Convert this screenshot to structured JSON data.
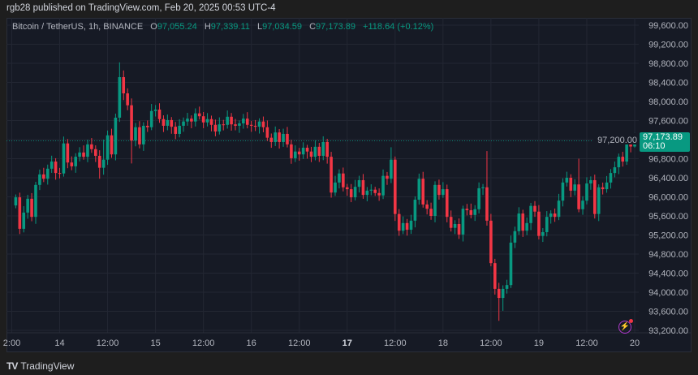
{
  "publisher": "rgb28 published on TradingView.com, Feb 20, 2025 00:53 UTC-4",
  "legend": {
    "symbol": "Bitcoin / TetherUS, 1h, BINANCE",
    "o_label": "O",
    "o": "97,055.24",
    "h_label": "H",
    "h": "97,339.11",
    "l_label": "L",
    "l": "97,034.59",
    "c_label": "C",
    "c": "97,173.89",
    "change": "+118.64 (+0.12%)"
  },
  "price_tag": {
    "price": "97,173.89",
    "countdown": "06:10"
  },
  "footer": {
    "logo": "TV",
    "brand": "TradingView"
  },
  "colors": {
    "up": "#089981",
    "down": "#f23645",
    "background": "#161a25",
    "grid": "#232733",
    "axis_text": "#b2b5be",
    "alert": "#b33ad0"
  },
  "icons": {
    "alert": "lightning-alert-icon",
    "logo": "tradingview-logo-icon"
  },
  "chart_data": {
    "type": "candlestick",
    "title": "Bitcoin / TetherUS, 1h, BINANCE",
    "ylim": [
      93200,
      99600
    ],
    "grid": true,
    "y_ticks": [
      99600,
      99200,
      98800,
      98400,
      98000,
      97600,
      97200,
      96800,
      96400,
      96000,
      95600,
      95200,
      94800,
      94400,
      94000,
      93600,
      93200
    ],
    "y_tick_labels": [
      "99,600.00",
      "99,200.00",
      "98,800.00",
      "98,400.00",
      "98,000.00",
      "97,600.00",
      "97,200.00",
      "96,800.00",
      "96,400.00",
      "96,000.00",
      "95,600.00",
      "95,200.00",
      "94,800.00",
      "94,400.00",
      "94,000.00",
      "93,600.00",
      "93,200.00"
    ],
    "x_tick_labels": [
      "2:00",
      "14",
      "12:00",
      "15",
      "12:00",
      "16",
      "12:00",
      "17",
      "12:00",
      "18",
      "12:00",
      "19",
      "12:00",
      "20"
    ],
    "x_tick_bold": [
      false,
      false,
      false,
      false,
      false,
      false,
      false,
      true,
      false,
      false,
      false,
      false,
      false,
      false
    ],
    "current_price": 97173.89,
    "first_open": 95820,
    "closes": [
      95990,
      95330,
      95670,
      95960,
      95580,
      96250,
      96470,
      96380,
      96590,
      96740,
      96500,
      96490,
      97120,
      96720,
      96640,
      96840,
      96930,
      96840,
      97100,
      97000,
      96860,
      96610,
      96780,
      97290,
      96890,
      97660,
      98510,
      98170,
      97920,
      97180,
      97460,
      97100,
      97490,
      97460,
      97800,
      97830,
      97630,
      97490,
      97610,
      97470,
      97320,
      97490,
      97580,
      97640,
      97580,
      97750,
      97690,
      97560,
      97630,
      97510,
      97370,
      97520,
      97510,
      97680,
      97520,
      97490,
      97540,
      97640,
      97510,
      97490,
      97470,
      97580,
      97460,
      97240,
      97150,
      97350,
      97150,
      97320,
      97100,
      96810,
      96950,
      96890,
      97030,
      96950,
      96840,
      97050,
      96860,
      97150,
      96840,
      96090,
      96300,
      96490,
      96200,
      96160,
      95990,
      96210,
      96350,
      96040,
      96130,
      96150,
      96080,
      96030,
      96440,
      96380,
      96780,
      95640,
      95290,
      95450,
      95310,
      95500,
      95940,
      96380,
      95840,
      95750,
      95600,
      96250,
      96040,
      96160,
      95580,
      95350,
      95430,
      95210,
      95750,
      95720,
      95620,
      95740,
      96180,
      96200,
      95500,
      94610,
      94070,
      93880,
      94070,
      94150,
      95040,
      95280,
      95650,
      95290,
      95450,
      95810,
      95690,
      95180,
      95260,
      95580,
      95650,
      95580,
      95920,
      96300,
      96400,
      96130,
      96260,
      95740,
      95920,
      96280,
      96350,
      95640,
      96200,
      96160,
      96300,
      96500,
      96620,
      96840,
      96740,
      97120,
      97055.24,
      97173.89
    ],
    "notable_highs": [
      {
        "index": 26,
        "high": 98820
      },
      {
        "index": 27,
        "high": 98650
      },
      {
        "index": 22,
        "high": 97200
      },
      {
        "index": 118,
        "high": 96960
      },
      {
        "index": 94,
        "high": 97040
      },
      {
        "index": 141,
        "high": 96800
      },
      {
        "index": 155,
        "high": 97339.11
      }
    ],
    "notable_lows": [
      {
        "index": 1,
        "high": null,
        "low": 95220
      },
      {
        "index": 21,
        "low": 96380
      },
      {
        "index": 121,
        "low": 93400
      },
      {
        "index": 122,
        "low": 93610
      },
      {
        "index": 29,
        "low": 96700
      },
      {
        "index": 155,
        "low": 97034.59
      }
    ]
  }
}
